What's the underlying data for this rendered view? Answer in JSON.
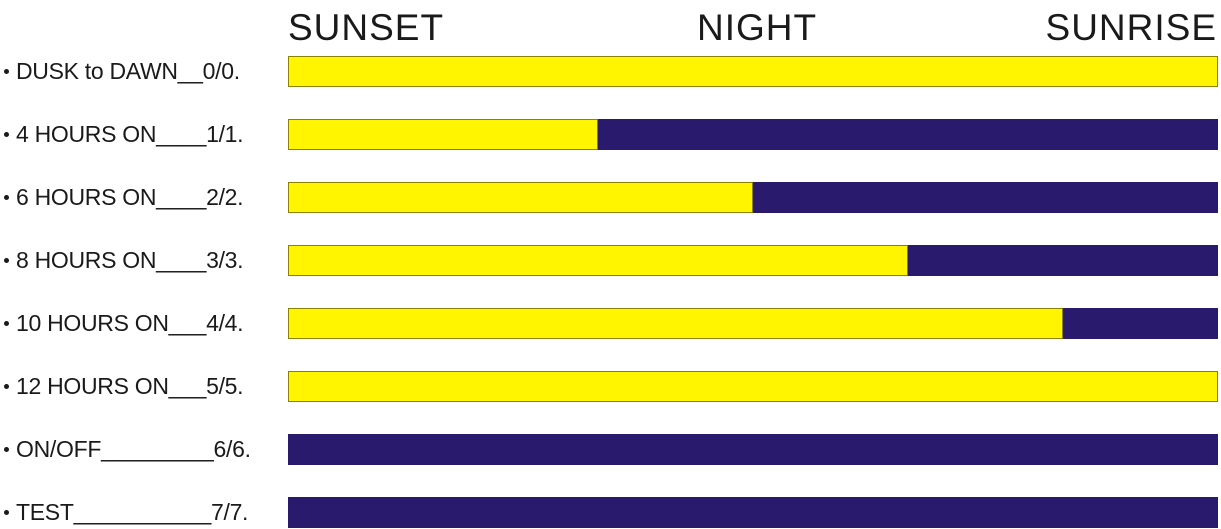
{
  "headers": {
    "sunset": "SUNSET",
    "night": "NIGHT",
    "sunrise": "SUNRISE"
  },
  "colors": {
    "on": "#fff500",
    "off": "#2a1a6e"
  },
  "modes": [
    {
      "label": "DUSK to DAWN__0/0.",
      "on_fraction": 1.0
    },
    {
      "label": "4 HOURS ON____1/1.",
      "on_fraction": 0.333
    },
    {
      "label": "6 HOURS ON____2/2.",
      "on_fraction": 0.5
    },
    {
      "label": "8 HOURS ON____3/3.",
      "on_fraction": 0.667
    },
    {
      "label": "10 HOURS ON___4/4.",
      "on_fraction": 0.833
    },
    {
      "label": "12 HOURS ON___5/5.",
      "on_fraction": 1.0
    },
    {
      "label": "ON/OFF_________6/6.",
      "on_fraction": 0.0
    },
    {
      "label": "TEST___________7/7.",
      "on_fraction": 0.0
    }
  ]
}
